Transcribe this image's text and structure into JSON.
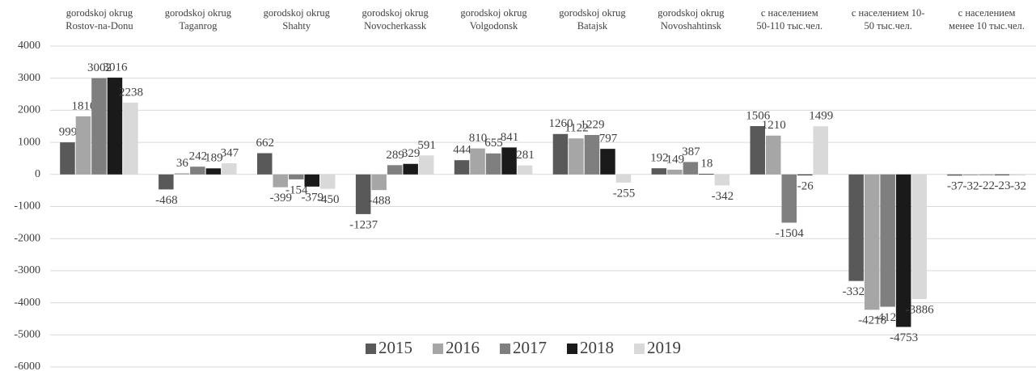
{
  "chart_data": {
    "type": "bar",
    "categories": [
      [
        "gorodskoj okrug",
        "Rostov-na-Donu"
      ],
      [
        "gorodskoj okrug",
        "Taganrog"
      ],
      [
        "gorodskoj okrug",
        "Shahty"
      ],
      [
        "gorodskoj okrug",
        "Novocherkassk"
      ],
      [
        "gorodskoj okrug",
        "Volgodonsk"
      ],
      [
        "gorodskoj okrug",
        "Batajsk"
      ],
      [
        "gorodskoj okrug",
        "Novoshahtinsk"
      ],
      [
        "с населением",
        "50-110 тыс.чел."
      ],
      [
        "с населением 10-",
        "50 тыс.чел."
      ],
      [
        "с населением",
        "менее 10 тыс.чел."
      ]
    ],
    "series": [
      {
        "name": "2015",
        "color": "#595959",
        "values": [
          999,
          -468,
          662,
          -1237,
          444,
          1260,
          192,
          1506,
          -3321,
          -37
        ]
      },
      {
        "name": "2016",
        "color": "#a6a6a6",
        "values": [
          1810,
          36,
          -399,
          -488,
          810,
          1122,
          149,
          1210,
          -4218,
          -32
        ]
      },
      {
        "name": "2017",
        "color": "#7f7f7f",
        "values": [
          3002,
          242,
          -154,
          289,
          655,
          1229,
          387,
          -1504,
          -4124,
          -22
        ]
      },
      {
        "name": "2018",
        "color": "#1a1a1a",
        "values": [
          3016,
          189,
          -379,
          329,
          841,
          797,
          18,
          -26,
          -4753,
          -23
        ]
      },
      {
        "name": "2019",
        "color": "#d9d9d9",
        "values": [
          2238,
          347,
          -450,
          591,
          281,
          -255,
          -342,
          1499,
          -3886,
          -32
        ]
      }
    ],
    "ylim": [
      -6000,
      4000
    ],
    "yticks": [
      -6000,
      -5000,
      -4000,
      -3000,
      -2000,
      -1000,
      0,
      1000,
      2000,
      3000,
      4000
    ],
    "grid": true,
    "legend": "bottom"
  }
}
